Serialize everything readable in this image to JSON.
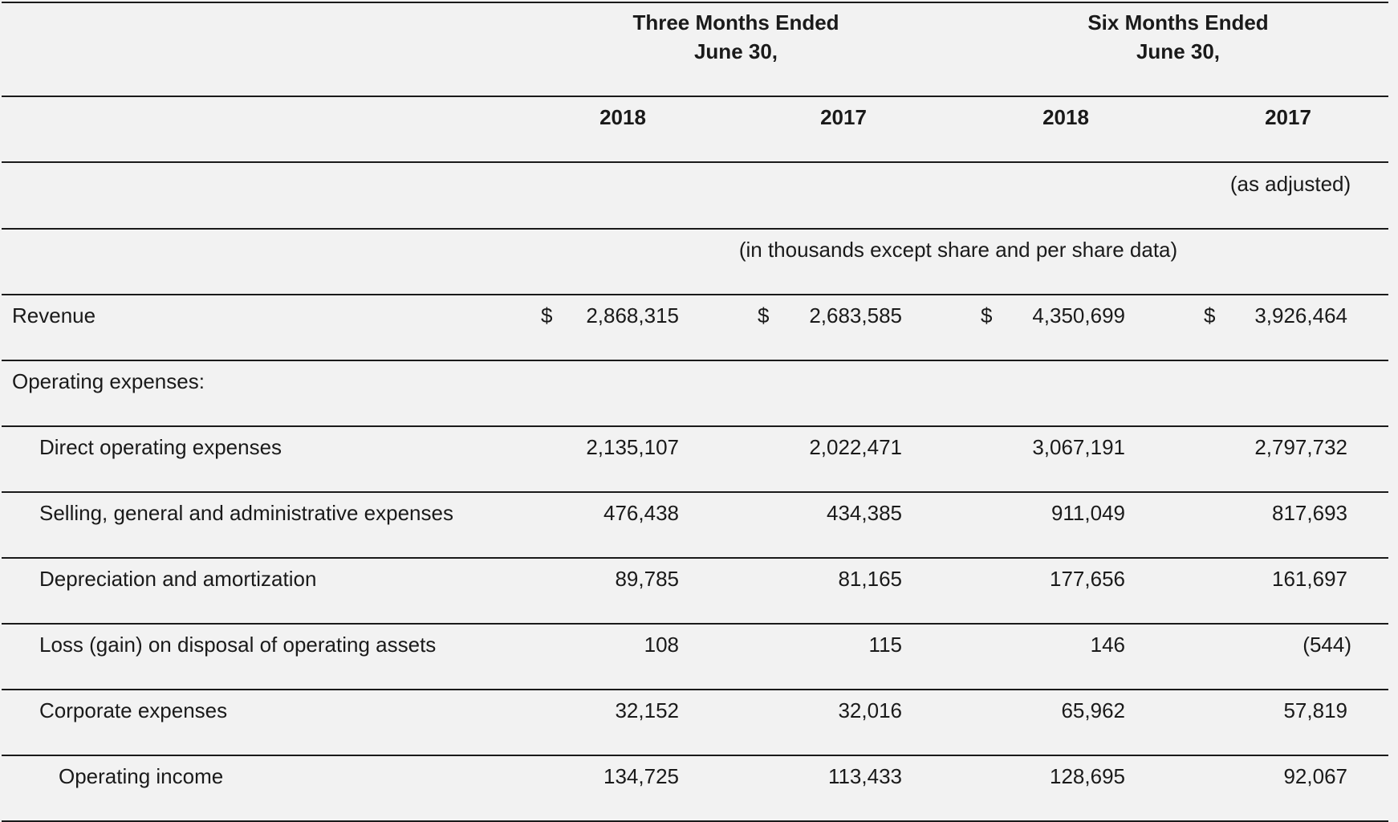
{
  "header": {
    "three_months_line1": "Three Months Ended",
    "three_months_line2": "June 30,",
    "six_months_line1": "Six Months Ended",
    "six_months_line2": "June 30,",
    "years": [
      "2018",
      "2017",
      "2018",
      "2017"
    ],
    "as_adjusted": "(as adjusted)",
    "units_note": "(in thousands except share and per share data)"
  },
  "rows": {
    "revenue": {
      "label": "Revenue",
      "currency": "$",
      "values": [
        "2,868,315",
        "2,683,585",
        "4,350,699",
        "3,926,464"
      ]
    },
    "operating_expenses_heading": "Operating expenses:",
    "direct_operating": {
      "label": "Direct operating expenses",
      "values": [
        "2,135,107",
        "2,022,471",
        "3,067,191",
        "2,797,732"
      ]
    },
    "sga": {
      "label": "Selling, general and administrative expenses",
      "values": [
        "476,438",
        "434,385",
        "911,049",
        "817,693"
      ]
    },
    "depreciation": {
      "label": "Depreciation and amortization",
      "values": [
        "89,785",
        "81,165",
        "177,656",
        "161,697"
      ]
    },
    "loss_gain": {
      "label": "Loss (gain) on disposal of operating assets",
      "values": [
        "108",
        "115",
        "146",
        "(544)"
      ]
    },
    "corporate": {
      "label": "Corporate expenses",
      "values": [
        "32,152",
        "32,016",
        "65,962",
        "57,819"
      ]
    },
    "operating_income": {
      "label": "Operating income",
      "values": [
        "134,725",
        "113,433",
        "128,695",
        "92,067"
      ]
    }
  }
}
